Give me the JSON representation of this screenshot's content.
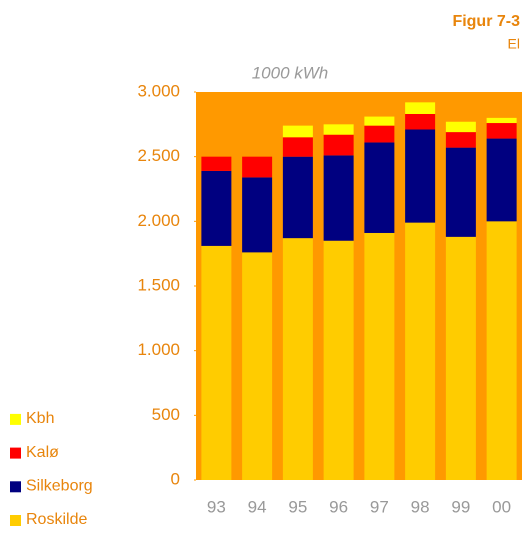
{
  "chart_data": {
    "type": "stacked_bar",
    "title": "Figur 7-3",
    "subtitle": "El",
    "y_label": "1000 kWh",
    "categories": [
      "93",
      "94",
      "95",
      "96",
      "97",
      "98",
      "99",
      "00"
    ],
    "series": [
      {
        "name": "Roskilde",
        "color": "#ffcc00",
        "values": [
          1810,
          1760,
          1870,
          1850,
          1910,
          1990,
          1880,
          2000
        ]
      },
      {
        "name": "Silkeborg",
        "color": "#000080",
        "values": [
          580,
          580,
          630,
          660,
          700,
          720,
          690,
          640
        ]
      },
      {
        "name": "Kalø",
        "color": "#ff0000",
        "values": [
          110,
          160,
          150,
          160,
          130,
          120,
          120,
          120
        ]
      },
      {
        "name": "Kbh",
        "color": "#ffff00",
        "values": [
          0,
          0,
          90,
          80,
          70,
          90,
          80,
          40
        ]
      }
    ],
    "ylim": [
      0,
      3000
    ],
    "yticks": [
      0,
      500,
      {
        "value": 1000,
        "label": "1.000"
      },
      {
        "value": 1500,
        "label": "1.500"
      },
      {
        "value": 2000,
        "label": "2.000"
      },
      {
        "value": 2500,
        "label": "2.500"
      },
      {
        "value": 3000,
        "label": "3.000"
      }
    ],
    "plot_background": "#ff9900"
  }
}
